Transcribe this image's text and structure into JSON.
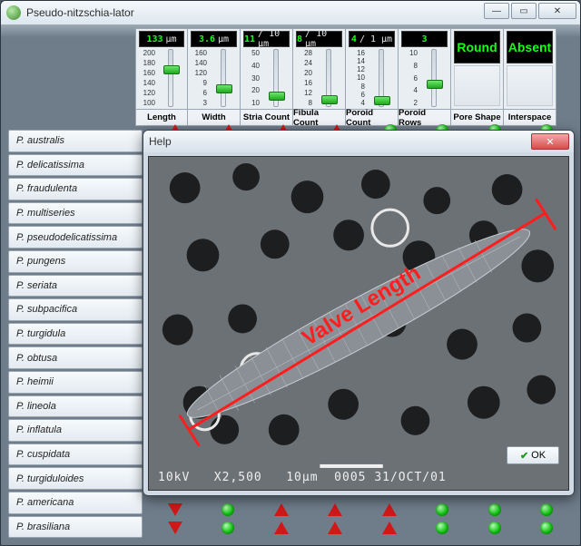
{
  "window": {
    "title": "Pseudo-nitzschia-lator"
  },
  "sliders": [
    {
      "label": "Length",
      "value": "133",
      "unit": "µm",
      "ticks": [
        "200",
        "180",
        "160",
        "140",
        "120",
        "100"
      ],
      "thumb_pct": 36
    },
    {
      "label": "Width",
      "value": "3.6",
      "unit": "µm",
      "ticks": [
        "160",
        "140",
        "120",
        "9",
        "6",
        "3"
      ],
      "thumb_pct": 70
    },
    {
      "label": "Stria Count",
      "value": "11",
      "unit": "/ 10 µm",
      "ticks": [
        "50",
        "40",
        "30",
        "20",
        "10"
      ],
      "thumb_pct": 82
    },
    {
      "label": "Fibula Count",
      "value": "8",
      "unit": "/ 10 µm",
      "ticks": [
        "28",
        "24",
        "20",
        "16",
        "12",
        "8"
      ],
      "thumb_pct": 88
    },
    {
      "label": "Poroid Count",
      "value": "4",
      "unit": "/ 1 µm",
      "ticks": [
        "16",
        "14",
        "12",
        "10",
        "8",
        "6",
        "4"
      ],
      "thumb_pct": 90
    },
    {
      "label": "Poroid Rows",
      "value": "3",
      "unit": "",
      "ticks": [
        "10",
        "8",
        "6",
        "4",
        "2"
      ],
      "thumb_pct": 62
    }
  ],
  "displays": [
    {
      "label": "Pore Shape",
      "value": "Round"
    },
    {
      "label": "Interspace",
      "value": "Absent"
    }
  ],
  "species": [
    "P. australis",
    "P. delicatissima",
    "P. fraudulenta",
    "P. multiseries",
    "P. pseudodelicatissima",
    "P. pungens",
    "P. seriata",
    "P. subpacifica",
    "P. turgidula",
    "P. obtusa",
    "P. heimii",
    "P. lineola",
    "P. inflatula",
    "P. cuspidata",
    "P. turgiduloides",
    "P. americana",
    "P. brasiliana"
  ],
  "top_indicators": [
    "tri-up",
    "tri-up",
    "tri-up",
    "tri-up",
    "led",
    "led",
    "led",
    "led"
  ],
  "bottom_rows": [
    [
      "tri-down",
      "led",
      "tri-up",
      "tri-up",
      "tri-up",
      "led",
      "led",
      "led"
    ],
    [
      "tri-down",
      "led",
      "tri-up",
      "tri-up",
      "tri-up",
      "led",
      "led",
      "led"
    ]
  ],
  "help": {
    "title": "Help",
    "ok": "OK",
    "sem_text": "10kV   X2,500   10µm  0005 31/OCT/01",
    "overlay_label": "Valve Length",
    "accent": "#ff1e1e"
  },
  "colors": {
    "led_green": "#18c818",
    "tri_red": "#d01818",
    "digit_green": "#19ff19"
  }
}
